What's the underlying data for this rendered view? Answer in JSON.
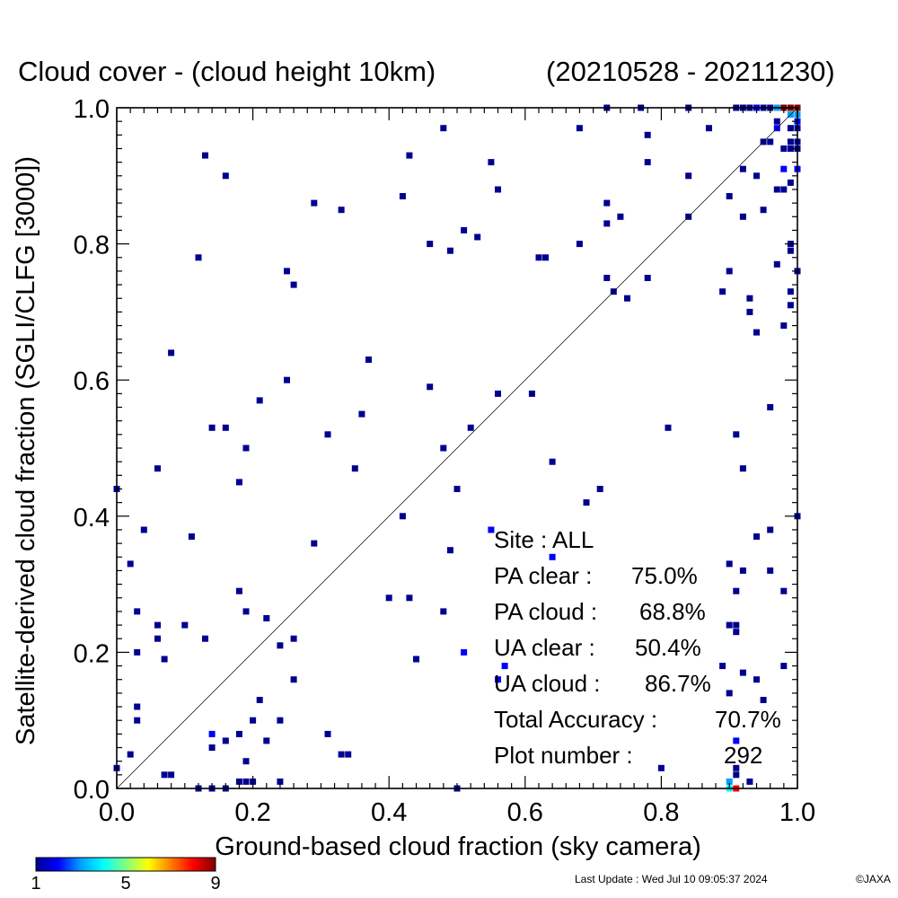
{
  "chart_data": {
    "type": "heatmap",
    "title": "Cloud cover - (cloud height 10km)",
    "date_range": "(20210528 - 20211230)",
    "xlabel": "Ground-based cloud fraction (sky camera)",
    "ylabel": "Satellite-derived cloud fraction (SGLI/CLFG [3000])",
    "xlim": [
      0.0,
      1.0
    ],
    "ylim": [
      0.0,
      1.0
    ],
    "x_ticks": [
      "0.0",
      "0.2",
      "0.4",
      "0.6",
      "0.8",
      "1.0"
    ],
    "y_ticks": [
      "0.0",
      "0.2",
      "0.4",
      "0.6",
      "0.8",
      "1.0"
    ],
    "reference_line": "1:1 diagonal",
    "colorbar": {
      "min": 1,
      "max": 9,
      "ticks": [
        "1",
        "5",
        "9"
      ],
      "colors": [
        "#000090",
        "#0000ff",
        "#00a0ff",
        "#00ffff",
        "#80ff80",
        "#ffff00",
        "#ff8000",
        "#ff0000",
        "#800000"
      ]
    },
    "stats": [
      {
        "label": "Site : ALL",
        "value": ""
      },
      {
        "label": "PA clear :",
        "value": "75.0%"
      },
      {
        "label": "PA cloud :",
        "value": "68.8%"
      },
      {
        "label": "UA clear :",
        "value": "50.4%"
      },
      {
        "label": "UA cloud :",
        "value": "86.7%"
      },
      {
        "label": "Total Accuracy :",
        "value": "70.7%"
      },
      {
        "label": "Plot number :",
        "value": "292"
      }
    ],
    "points": [
      [
        0.13,
        0.93,
        1
      ],
      [
        0.16,
        0.9,
        1
      ],
      [
        0.12,
        0.78,
        1
      ],
      [
        0.08,
        0.64,
        1
      ],
      [
        0.0,
        0.44,
        1
      ],
      [
        0.04,
        0.38,
        1
      ],
      [
        0.02,
        0.33,
        1
      ],
      [
        0.06,
        0.47,
        1
      ],
      [
        0.03,
        0.26,
        1
      ],
      [
        0.06,
        0.24,
        1
      ],
      [
        0.06,
        0.22,
        1
      ],
      [
        0.03,
        0.2,
        1
      ],
      [
        0.07,
        0.19,
        1
      ],
      [
        0.1,
        0.24,
        1
      ],
      [
        0.11,
        0.37,
        1
      ],
      [
        0.13,
        0.22,
        1
      ],
      [
        0.14,
        0.53,
        1
      ],
      [
        0.16,
        0.53,
        1
      ],
      [
        0.18,
        0.45,
        1
      ],
      [
        0.19,
        0.5,
        1
      ],
      [
        0.21,
        0.57,
        1
      ],
      [
        0.18,
        0.29,
        1
      ],
      [
        0.19,
        0.26,
        1
      ],
      [
        0.22,
        0.25,
        1
      ],
      [
        0.03,
        0.12,
        1
      ],
      [
        0.03,
        0.1,
        1
      ],
      [
        0.02,
        0.05,
        1
      ],
      [
        0.0,
        0.03,
        1
      ],
      [
        0.07,
        0.02,
        1
      ],
      [
        0.08,
        0.02,
        1
      ],
      [
        0.14,
        0.08,
        2
      ],
      [
        0.14,
        0.06,
        1
      ],
      [
        0.16,
        0.07,
        1
      ],
      [
        0.18,
        0.08,
        1
      ],
      [
        0.2,
        0.1,
        1
      ],
      [
        0.21,
        0.13,
        1
      ],
      [
        0.19,
        0.04,
        1
      ],
      [
        0.22,
        0.07,
        1
      ],
      [
        0.24,
        0.1,
        1
      ],
      [
        0.24,
        0.21,
        1
      ],
      [
        0.26,
        0.22,
        1
      ],
      [
        0.26,
        0.16,
        1
      ],
      [
        0.12,
        0.0,
        1
      ],
      [
        0.14,
        0.0,
        1
      ],
      [
        0.16,
        0.0,
        1
      ],
      [
        0.18,
        0.01,
        1
      ],
      [
        0.19,
        0.01,
        1
      ],
      [
        0.2,
        0.01,
        1
      ],
      [
        0.24,
        0.01,
        1
      ],
      [
        0.25,
        0.6,
        1
      ],
      [
        0.25,
        0.76,
        1
      ],
      [
        0.26,
        0.74,
        1
      ],
      [
        0.29,
        0.86,
        1
      ],
      [
        0.33,
        0.85,
        1
      ],
      [
        0.29,
        0.36,
        1
      ],
      [
        0.31,
        0.52,
        1
      ],
      [
        0.35,
        0.47,
        1
      ],
      [
        0.36,
        0.55,
        1
      ],
      [
        0.37,
        0.63,
        1
      ],
      [
        0.31,
        0.08,
        1
      ],
      [
        0.33,
        0.05,
        1
      ],
      [
        0.34,
        0.05,
        1
      ],
      [
        0.42,
        0.87,
        1
      ],
      [
        0.43,
        0.93,
        1
      ],
      [
        0.46,
        0.8,
        1
      ],
      [
        0.48,
        0.97,
        1
      ],
      [
        0.49,
        0.79,
        1
      ],
      [
        0.51,
        0.82,
        1
      ],
      [
        0.53,
        0.81,
        1
      ],
      [
        0.55,
        0.92,
        1
      ],
      [
        0.56,
        0.88,
        1
      ],
      [
        0.46,
        0.59,
        1
      ],
      [
        0.42,
        0.4,
        1
      ],
      [
        0.4,
        0.28,
        1
      ],
      [
        0.43,
        0.28,
        1
      ],
      [
        0.44,
        0.19,
        1
      ],
      [
        0.48,
        0.5,
        1
      ],
      [
        0.48,
        0.26,
        1
      ],
      [
        0.49,
        0.35,
        1
      ],
      [
        0.5,
        0.44,
        1
      ],
      [
        0.52,
        0.53,
        1
      ],
      [
        0.56,
        0.58,
        1
      ],
      [
        0.61,
        0.58,
        1
      ],
      [
        0.64,
        0.48,
        1
      ],
      [
        0.62,
        0.78,
        1
      ],
      [
        0.63,
        0.78,
        1
      ],
      [
        0.68,
        0.8,
        1
      ],
      [
        0.72,
        0.83,
        1
      ],
      [
        0.72,
        0.86,
        1
      ],
      [
        0.74,
        0.84,
        1
      ],
      [
        0.72,
        0.75,
        1
      ],
      [
        0.73,
        0.73,
        1
      ],
      [
        0.75,
        0.72,
        1
      ],
      [
        0.78,
        0.75,
        1
      ],
      [
        0.68,
        0.97,
        1
      ],
      [
        0.72,
        1.0,
        1
      ],
      [
        0.77,
        1.0,
        1
      ],
      [
        0.78,
        0.96,
        1
      ],
      [
        0.78,
        0.92,
        1
      ],
      [
        0.84,
        1.0,
        1
      ],
      [
        0.87,
        0.97,
        1
      ],
      [
        0.84,
        0.9,
        1
      ],
      [
        0.84,
        0.84,
        1
      ],
      [
        0.81,
        0.53,
        1
      ],
      [
        0.71,
        0.44,
        1
      ],
      [
        0.69,
        0.42,
        1
      ],
      [
        0.55,
        0.38,
        2
      ],
      [
        0.5,
        0.0,
        1
      ],
      [
        0.9,
        0.87,
        1
      ],
      [
        0.92,
        0.91,
        1
      ],
      [
        0.92,
        0.84,
        1
      ],
      [
        0.94,
        0.9,
        1
      ],
      [
        0.95,
        0.85,
        1
      ],
      [
        0.95,
        0.95,
        1
      ],
      [
        0.96,
        0.95,
        1
      ],
      [
        0.97,
        0.88,
        1
      ],
      [
        0.98,
        0.88,
        1
      ],
      [
        0.98,
        0.91,
        2
      ],
      [
        0.99,
        0.89,
        1
      ],
      [
        0.99,
        0.8,
        1
      ],
      [
        0.99,
        0.79,
        1
      ],
      [
        0.97,
        0.77,
        1
      ],
      [
        1.0,
        0.76,
        1
      ],
      [
        0.9,
        0.76,
        1
      ],
      [
        0.89,
        0.73,
        1
      ],
      [
        0.93,
        0.72,
        1
      ],
      [
        0.93,
        0.7,
        1
      ],
      [
        0.94,
        0.67,
        1
      ],
      [
        0.98,
        0.68,
        1
      ],
      [
        0.99,
        0.73,
        1
      ],
      [
        0.99,
        0.71,
        1
      ],
      [
        0.91,
        0.52,
        1
      ],
      [
        0.92,
        0.47,
        1
      ],
      [
        0.96,
        0.56,
        1
      ],
      [
        0.94,
        0.37,
        1
      ],
      [
        0.96,
        0.38,
        1
      ],
      [
        1.0,
        0.4,
        1
      ],
      [
        0.92,
        0.32,
        1
      ],
      [
        0.96,
        0.32,
        1
      ],
      [
        0.91,
        0.29,
        1
      ],
      [
        0.98,
        0.29,
        1
      ],
      [
        0.9,
        0.24,
        1
      ],
      [
        0.91,
        0.24,
        1
      ],
      [
        0.91,
        0.23,
        1
      ],
      [
        0.89,
        0.18,
        1
      ],
      [
        0.92,
        0.17,
        1
      ],
      [
        0.94,
        0.16,
        1
      ],
      [
        0.9,
        0.14,
        1
      ],
      [
        0.95,
        0.13,
        1
      ],
      [
        0.98,
        0.18,
        1
      ],
      [
        0.91,
        0.07,
        2
      ],
      [
        0.91,
        0.03,
        1
      ],
      [
        0.91,
        0.02,
        1
      ],
      [
        0.93,
        0.01,
        1
      ],
      [
        0.9,
        0.01,
        3
      ],
      [
        0.9,
        0.0,
        4
      ],
      [
        0.91,
        0.0,
        8
      ],
      [
        0.9,
        0.33,
        1
      ],
      [
        0.91,
        1.0,
        1
      ],
      [
        0.92,
        1.0,
        1
      ],
      [
        0.93,
        1.0,
        1
      ],
      [
        0.94,
        1.0,
        2
      ],
      [
        0.95,
        1.0,
        1
      ],
      [
        0.96,
        1.0,
        1
      ],
      [
        0.97,
        1.0,
        3
      ],
      [
        0.98,
        1.0,
        9
      ],
      [
        0.99,
        1.0,
        9
      ],
      [
        1.0,
        1.0,
        9
      ],
      [
        0.99,
        0.99,
        3
      ],
      [
        1.0,
        0.99,
        3
      ],
      [
        1.0,
        0.98,
        2
      ],
      [
        0.99,
        0.97,
        1
      ],
      [
        1.0,
        0.97,
        1
      ],
      [
        0.99,
        0.95,
        1
      ],
      [
        1.0,
        0.95,
        1
      ],
      [
        0.99,
        0.94,
        1
      ],
      [
        1.0,
        0.94,
        1
      ],
      [
        0.98,
        0.94,
        1
      ],
      [
        1.0,
        0.91,
        2
      ],
      [
        0.97,
        0.97,
        2
      ],
      [
        0.97,
        0.98,
        1
      ],
      [
        0.64,
        0.34,
        2
      ],
      [
        0.51,
        0.2,
        2
      ],
      [
        0.56,
        0.16,
        2
      ],
      [
        0.57,
        0.18,
        2
      ],
      [
        0.8,
        0.03,
        1
      ]
    ]
  },
  "footer": {
    "last_update": "Last Update : Wed Jul 10 09:05:37 2024",
    "copyright": "©JAXA"
  }
}
